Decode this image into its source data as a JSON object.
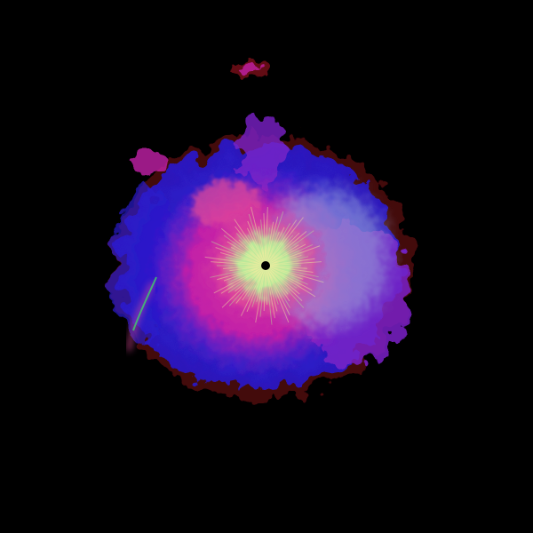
{
  "scene": {
    "background_color": "#000000",
    "palette": {
      "outer_blue": "#2a1acc",
      "violet": "#7a22c8",
      "magenta": "#c21fa8",
      "pink": "#e04a9a",
      "pale_blue_haze": "#9aa6d8",
      "cream_core": "#f2eda0",
      "pale_green": "#b8e89a",
      "dark_red_fringe": "#7a0c18",
      "green_streak": "#3fcf6a",
      "center_void": "#000000"
    }
  }
}
